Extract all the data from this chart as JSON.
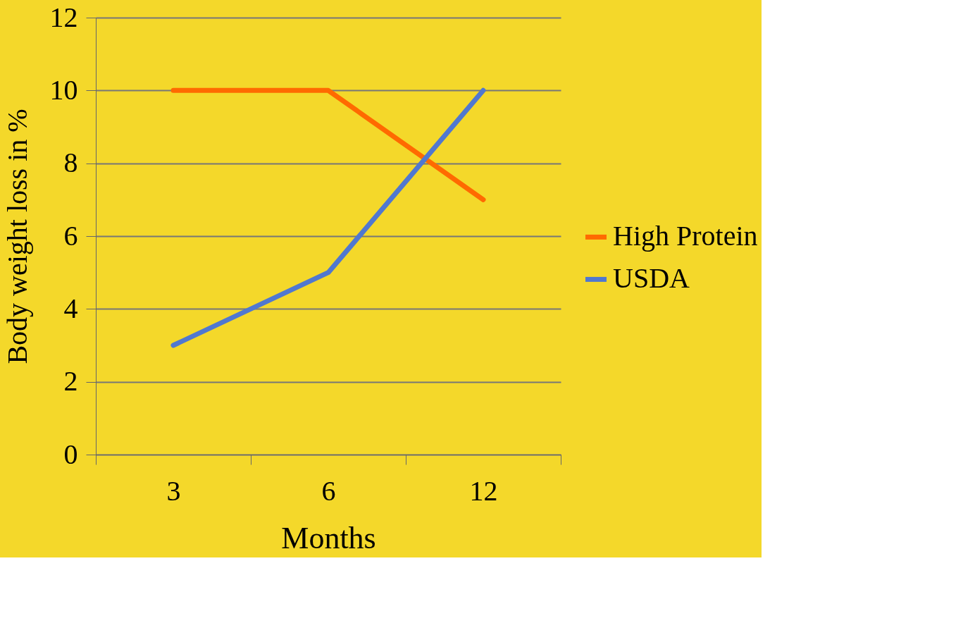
{
  "chart_data": {
    "type": "line",
    "xlabel": "Months",
    "ylabel": "Body weight loss in %",
    "categories": [
      "3",
      "6",
      "12"
    ],
    "series": [
      {
        "name": "High Protein",
        "color": "#ff6a00",
        "values": [
          10,
          10,
          7
        ]
      },
      {
        "name": "USDA",
        "color": "#5078d0",
        "values": [
          3,
          5,
          10
        ]
      }
    ],
    "ylim": [
      0,
      12
    ],
    "yticks": [
      0,
      2,
      4,
      6,
      8,
      10,
      12
    ],
    "grid": "y",
    "legend": "right",
    "marker": "none",
    "line_style": "solid"
  }
}
